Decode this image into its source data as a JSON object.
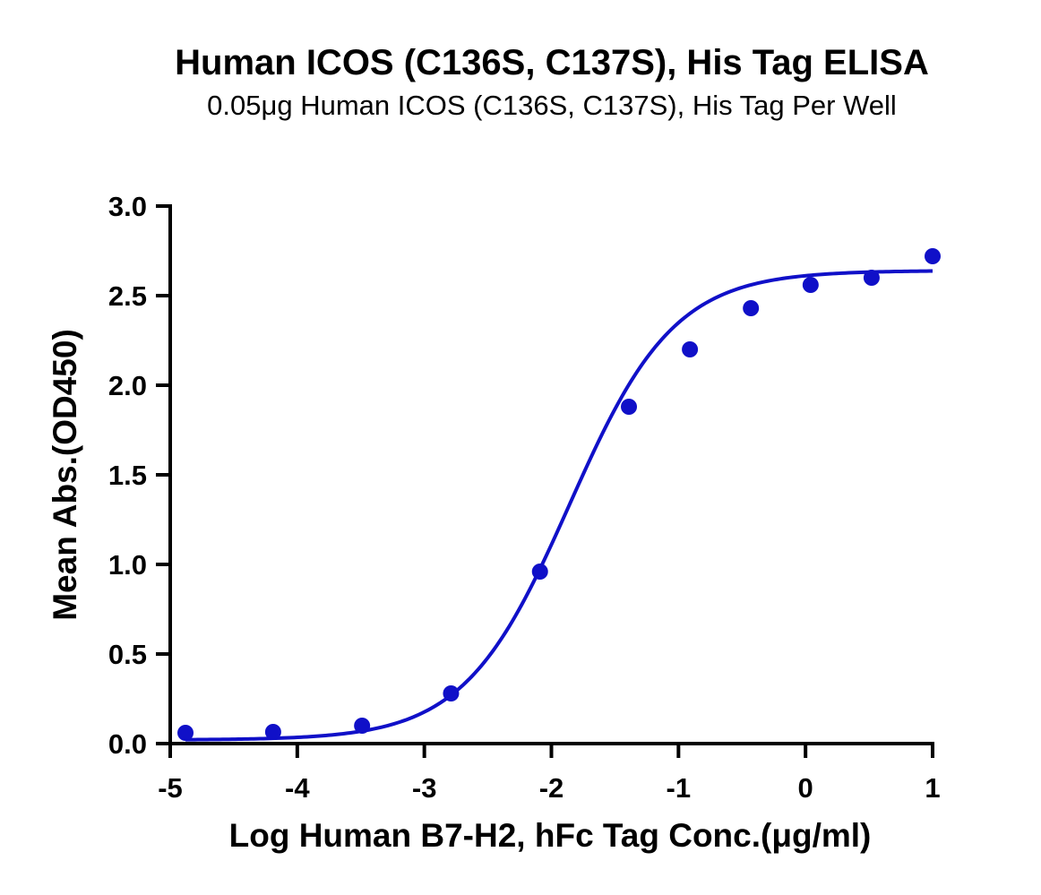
{
  "chart_data": {
    "type": "scatter",
    "title": "Human ICOS (C136S, C137S), His Tag ELISA",
    "subtitle": "0.05μg Human ICOS (C136S, C137S), His Tag Per Well",
    "xlabel": "Log Human B7-H2, hFc Tag Conc.(μg/ml)",
    "ylabel": "Mean Abs.(OD450)",
    "xlim": [
      -5,
      1
    ],
    "ylim": [
      0,
      3
    ],
    "x_ticks": [
      -5,
      -4,
      -3,
      -2,
      -1,
      0,
      1
    ],
    "x_tick_labels": [
      "-5",
      "-4",
      "-3",
      "-2",
      "-1",
      "0",
      "1"
    ],
    "y_ticks": [
      0,
      0.5,
      1,
      1.5,
      2,
      2.5,
      3
    ],
    "y_tick_labels": [
      "0.0",
      "0.5",
      "1.0",
      "1.5",
      "2.0",
      "2.5",
      "3.0"
    ],
    "grid": false,
    "legend": "none",
    "series": [
      {
        "color": "#1010c8",
        "x": [
          -4.88,
          -4.19,
          -3.49,
          -2.79,
          -2.09,
          -1.39,
          -0.91,
          -0.43,
          0.04,
          0.52,
          1.0
        ],
        "y": [
          0.06,
          0.065,
          0.1,
          0.28,
          0.96,
          1.88,
          2.2,
          2.43,
          2.56,
          2.6,
          2.72
        ]
      }
    ],
    "fit_curve": {
      "color": "#1010c8",
      "model": "4PL",
      "bottom": 0.02,
      "top": 2.64,
      "logEC50": -1.86,
      "hill": 1.05
    }
  }
}
